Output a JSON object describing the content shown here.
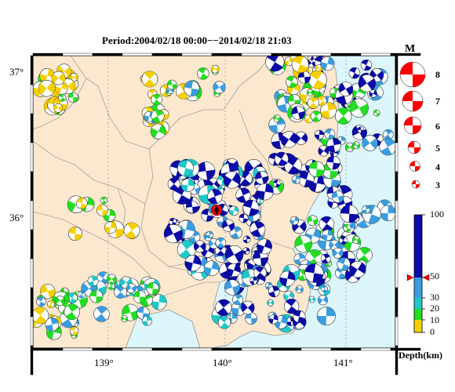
{
  "title": "Period:2004/02/18 00:00−−2014/02/18 21:03",
  "lat_labels": [
    "37°",
    "36°"
  ],
  "lon_labels": [
    "139°",
    "140°",
    "141°"
  ],
  "magnitude": {
    "label": "M",
    "scale": [
      "8",
      "7",
      "6",
      "5",
      "4",
      "3"
    ]
  },
  "depth": {
    "label": "Depth(km)",
    "ticks": [
      "100",
      "50",
      "30",
      "20",
      "10",
      "0"
    ],
    "colors": {
      "deep": "#0a0aa8",
      "mid": "#3b9de0",
      "shallow1": "#20c8c8",
      "shallow2": "#22dd22",
      "surface": "#f5d000"
    }
  },
  "colors": {
    "land": "#fbe8cf",
    "sea": "#dcf6fb",
    "mechanism": "#ff0000"
  }
}
